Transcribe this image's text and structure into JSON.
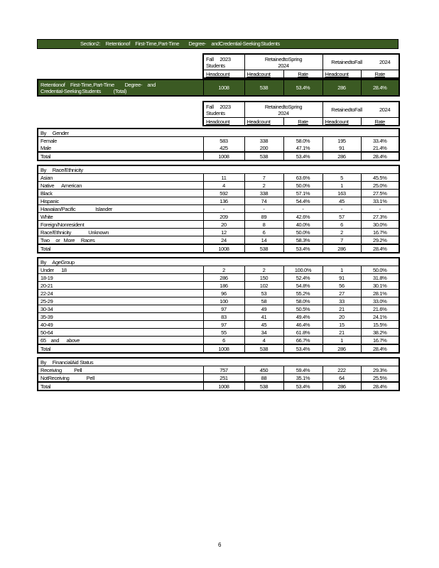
{
  "title": "Section2:          Retentionof          First-Time, Part-Time                  Degree-          andCredential-Seeking Students",
  "header": {
    "fall_students": "Fall     2023\nStudents",
    "spring": "RetainedtoSpring\n2024",
    "fall_retained": "RetainedtoFall              2024",
    "sub": [
      "Headcount",
      "Headcount",
      "Rate",
      "Headcount",
      "Rate"
    ]
  },
  "overall": {
    "label": "Retentionof          First-Time, Part-Time                    Degree-          and\nCredential-Seeking Students                        (Total)",
    "values": [
      "1008",
      "538",
      "53.4%",
      "286",
      "28.4%"
    ]
  },
  "sections": [
    {
      "title": "By     Gender",
      "lined": false,
      "rows": [
        [
          "Female",
          "583",
          "338",
          "58.0%",
          "195",
          "33.4%"
        ],
        [
          "Male",
          "425",
          "200",
          "47.1%",
          "91",
          "21.4%"
        ]
      ],
      "total": [
        "Total",
        "1008",
        "538",
        "53.4%",
        "286",
        "28.4%"
      ]
    },
    {
      "title": "By     Race/Ethnicity",
      "lined": true,
      "rows": [
        [
          "Asian",
          "11",
          "7",
          "63.6%",
          "5",
          "45.5%"
        ],
        [
          "Native      American",
          "4",
          "2",
          "50.0%",
          "1",
          "25.0%"
        ],
        [
          "Black",
          "592",
          "338",
          "57.1%",
          "163",
          "27.5%"
        ],
        [
          "Hispanic",
          "136",
          "74",
          "54.4%",
          "45",
          "33.1%"
        ],
        [
          "Hawaiian/Pacific                Islander",
          "-",
          "-",
          "-",
          "-",
          "-"
        ],
        [
          "White",
          "209",
          "89",
          "42.6%",
          "57",
          "27.3%"
        ],
        [
          "Foreign/Nonresident",
          "20",
          "8",
          "40.0%",
          "6",
          "30.0%"
        ],
        [
          "Race/Ethnicity              Unknown",
          "12",
          "6",
          "50.0%",
          "2",
          "16.7%"
        ],
        [
          "Two     or   More     Races",
          "24",
          "14",
          "58.3%",
          "7",
          "29.2%"
        ]
      ],
      "total": [
        "Total",
        "1008",
        "538",
        "53.4%",
        "286",
        "28.4%"
      ]
    },
    {
      "title": "By     AgeGroup",
      "lined": true,
      "rows": [
        [
          "Under      18",
          "2",
          "2",
          "100.0%",
          "1",
          "50.0%"
        ],
        [
          "18-19",
          "286",
          "150",
          "52.4%",
          "91",
          "31.8%"
        ],
        [
          "20-21",
          "186",
          "102",
          "54.8%",
          "56",
          "30.1%"
        ],
        [
          "22-24",
          "96",
          "53",
          "55.2%",
          "27",
          "28.1%"
        ],
        [
          "25-29",
          "100",
          "58",
          "58.0%",
          "33",
          "33.0%"
        ],
        [
          "30-34",
          "97",
          "49",
          "50.5%",
          "21",
          "21.6%"
        ],
        [
          "35-39",
          "83",
          "41",
          "49.4%",
          "20",
          "24.1%"
        ],
        [
          "40-49",
          "97",
          "45",
          "46.4%",
          "15",
          "15.5%"
        ],
        [
          "50-64",
          "55",
          "34",
          "61.8%",
          "21",
          "38.2%"
        ],
        [
          "65    and      above",
          "6",
          "4",
          "66.7%",
          "1",
          "16.7%"
        ]
      ],
      "total": [
        "Total",
        "1008",
        "538",
        "53.4%",
        "286",
        "28.4%"
      ]
    },
    {
      "title": "By     FinancialAid Status",
      "lined": true,
      "rows": [
        [
          "Receiving          Pell",
          "757",
          "450",
          "59.4%",
          "222",
          "29.3%"
        ],
        [
          "NotReceiving              Pell",
          "251",
          "88",
          "35.1%",
          "64",
          "25.5%"
        ]
      ],
      "total": [
        "Total",
        "1008",
        "538",
        "53.4%",
        "286",
        "28.4%"
      ]
    }
  ],
  "page_number": "6",
  "colors": {
    "header_fill": "#3b5a23"
  }
}
